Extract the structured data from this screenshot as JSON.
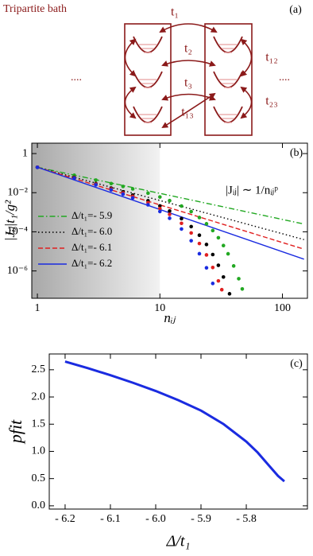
{
  "diagram": {
    "title": "Tripartite bath",
    "panel_label": "(a)",
    "couplings": [
      "t₁",
      "t₂",
      "t₃",
      "t₁₂",
      "t₂₃",
      "t₁₃"
    ],
    "ellipses": [
      "....",
      "...."
    ]
  },
  "chart_data": [
    {
      "type": "line",
      "panel_label": "(b)",
      "xlabel": "nᵢⱼ",
      "ylabel": "|Jᵢⱼ|t₁/g²",
      "annotation": "|Jᵢⱼ| ∼ 1/nᵢⱼᵖ",
      "xlog": true,
      "ylog": true,
      "xlim": [
        0.9,
        160
      ],
      "ylim": [
        4e-08,
        3.4
      ],
      "xticks": [
        1,
        10,
        100
      ],
      "yticks": [
        1,
        {
          "value": 0.01,
          "label": "10⁻²"
        },
        {
          "value": 0.0001,
          "label": "10⁻⁴"
        },
        {
          "value": 1e-06,
          "label": "10⁻⁶"
        }
      ],
      "shade_x": [
        0.9,
        10
      ],
      "legend": "lower left",
      "series": [
        {
          "name": "Δ/t₁=- 5.9",
          "color": "#22a822",
          "style": "dash-dot",
          "x": [
            1,
            150
          ],
          "values": [
            0.2,
            0.00025
          ]
        },
        {
          "name": "Δ/t₁=- 6.0",
          "color": "#000000",
          "style": "dotted",
          "x": [
            1,
            150
          ],
          "values": [
            0.2,
            4e-05
          ]
        },
        {
          "name": "Δ/t₁=- 6.1",
          "color": "#e02020",
          "style": "dashed",
          "x": [
            1,
            150
          ],
          "values": [
            0.2,
            1.3e-05
          ]
        },
        {
          "name": "Δ/t₁=- 6.2",
          "color": "#1a2be0",
          "style": "solid",
          "x": [
            1,
            150
          ],
          "values": [
            0.2,
            4e-06
          ]
        },
        {
          "color": "#22a822",
          "style": "dots",
          "x": [
            1,
            2,
            3,
            4,
            5,
            6,
            8,
            10,
            12,
            15,
            18,
            21,
            24,
            27,
            30,
            33,
            36,
            40,
            44,
            47
          ],
          "values": [
            0.199,
            0.0777,
            0.0442,
            0.0292,
            0.0209,
            0.0156,
            0.00945,
            0.00603,
            0.00393,
            0.00208,
            0.00108,
            0.000538,
            0.000257,
            0.000116,
            4.96e-05,
            1.98e-05,
            7.5e-06,
            1.8e-06,
            4e-07,
            1.2e-07
          ]
        },
        {
          "color": "#000000",
          "style": "dots",
          "x": [
            1,
            2,
            3,
            4,
            5,
            6,
            8,
            10,
            12,
            15,
            18,
            21,
            24,
            27,
            30,
            33,
            37
          ],
          "values": [
            0.199,
            0.0601,
            0.0291,
            0.0171,
            0.011,
            0.00754,
            0.00388,
            0.0021,
            0.00116,
            0.000474,
            0.000185,
            6.7e-05,
            2.26e-05,
            6.9e-06,
            1.94e-06,
            4.9e-07,
            6.8e-08
          ]
        },
        {
          "color": "#e02020",
          "style": "dots",
          "x": [
            1,
            2,
            3,
            4,
            5,
            6,
            8,
            10,
            12,
            15,
            18,
            21,
            24,
            27,
            30,
            32
          ],
          "values": [
            0.199,
            0.0576,
            0.0271,
            0.0155,
            0.0097,
            0.00644,
            0.0031,
            0.00155,
            0.000784,
            0.000272,
            8.75e-05,
            2.53e-05,
            6.6e-06,
            1.5e-06,
            3.1e-07,
            1.1e-07
          ]
        },
        {
          "color": "#1a2be0",
          "style": "dots",
          "x": [
            1,
            2,
            3,
            4,
            5,
            6,
            8,
            10,
            12,
            15,
            18,
            21,
            24,
            27
          ],
          "values": [
            0.198,
            0.0551,
            0.0251,
            0.0139,
            0.00843,
            0.0054,
            0.0024,
            0.00109,
            0.000492,
            0.000139,
            3.5e-05,
            7.6e-06,
            1.44e-06,
            2.3e-07
          ]
        }
      ]
    },
    {
      "type": "line",
      "panel_label": "(c)",
      "xlabel": "Δ/t₁",
      "ylabel": "pfit",
      "xlim": [
        -6.235,
        -5.665
      ],
      "ylim": [
        -0.06,
        2.79
      ],
      "xticks": [
        {
          "value": -6.2,
          "label": "- 6.2"
        },
        {
          "value": -6.1,
          "label": "- 6.1"
        },
        {
          "value": -6.0,
          "label": "- 6.0"
        },
        {
          "value": -5.9,
          "label": "- 5.9"
        },
        {
          "value": -5.8,
          "label": "- 5.8"
        }
      ],
      "yticks": [
        {
          "value": 0,
          "label": "0.0"
        },
        0.5,
        {
          "value": 1,
          "label": "1.0"
        },
        1.5,
        {
          "value": 2,
          "label": "2.0"
        },
        2.5
      ],
      "series": [
        {
          "color": "#1a2be0",
          "style": "solid",
          "x": [
            -6.2,
            -6.15,
            -6.1,
            -6.05,
            -6.0,
            -5.95,
            -5.9,
            -5.85,
            -5.8,
            -5.775,
            -5.75,
            -5.73,
            -5.716
          ],
          "values": [
            2.65,
            2.53,
            2.4,
            2.26,
            2.11,
            1.94,
            1.75,
            1.5,
            1.18,
            0.98,
            0.74,
            0.55,
            0.45
          ]
        }
      ]
    }
  ]
}
